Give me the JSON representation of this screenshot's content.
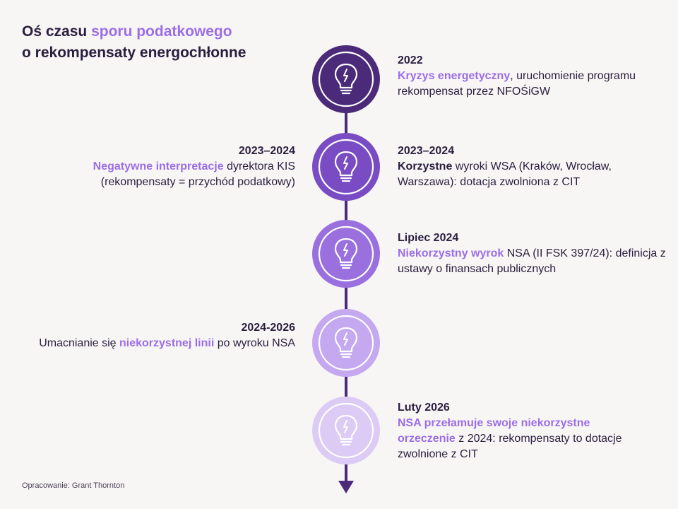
{
  "title": {
    "line1_prefix": "Oś czasu ",
    "line1_highlight": "sporu podatkowego",
    "line2": "o rekompensaty energochłonne"
  },
  "footer": "Opracowanie: Grant Thornton",
  "colors": {
    "accent": "#9b6ee6",
    "axis": "#4b2a7a",
    "node1": "#4b2a7a",
    "node2": "#7a4cc4",
    "node3": "#9a70df",
    "node4": "#c4a8f0",
    "node5": "#dccbf5"
  },
  "icon": "lightbulb-icon",
  "events": [
    {
      "date": "2022",
      "highlight": "Kryzys energetyczny",
      "text": ", uruchomienie programu rekompensat przez NFOŚiGW"
    },
    {
      "date": "2023–2024",
      "pre": "",
      "highlight": "Negatywne interpretacje",
      "text": " dyrektora KIS (rekompensaty = przychód podatkowy)"
    },
    {
      "date": "2023–2024",
      "highlight": "Korzystne",
      "text": " wyroki WSA (Kraków, Wrocław, Warszawa): dotacja zwolniona z CIT",
      "plain_highlight": true
    },
    {
      "date": "Lipiec 2024",
      "highlight": "Niekorzystny wyrok",
      "text": " NSA (II FSK 397/24): definicja z ustawy o finansach publicznych"
    },
    {
      "date": "2024-2026",
      "pre": "Umacnianie się ",
      "highlight": "niekorzystnej linii",
      "text": " po wyroku NSA"
    },
    {
      "date": "Luty 2026",
      "highlight": "NSA przełamuje swoje niekorzystne orzeczenie",
      "text": " z 2024: rekompensaty to dotacje zwolnione z CIT"
    }
  ]
}
